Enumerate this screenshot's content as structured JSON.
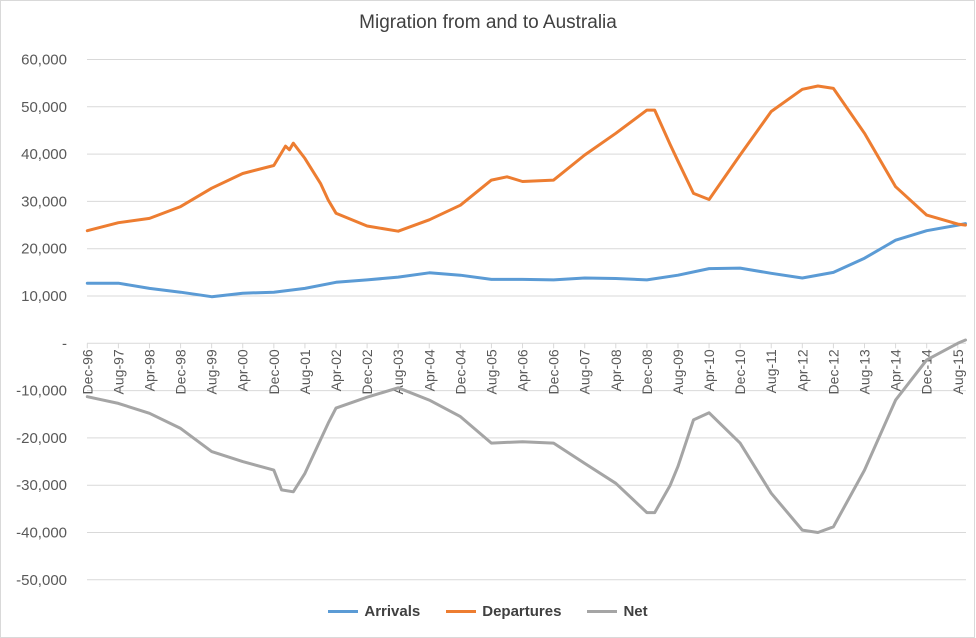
{
  "chart_data": {
    "type": "line",
    "title": "Migration from and to Australia",
    "xlabel": "",
    "ylabel": "",
    "ylim": [
      -50000,
      60000
    ],
    "y_ticks": [
      {
        "value": 60000,
        "label": "60,000"
      },
      {
        "value": 50000,
        "label": "50,000"
      },
      {
        "value": 40000,
        "label": "40,000"
      },
      {
        "value": 30000,
        "label": "30,000"
      },
      {
        "value": 20000,
        "label": "20,000"
      },
      {
        "value": 10000,
        "label": "10,000"
      },
      {
        "value": 0,
        "label": "-"
      },
      {
        "value": -10000,
        "label": "-10,000"
      },
      {
        "value": -20000,
        "label": "-20,000"
      },
      {
        "value": -30000,
        "label": "-30,000"
      },
      {
        "value": -40000,
        "label": "-40,000"
      },
      {
        "value": -50000,
        "label": "-50,000"
      }
    ],
    "x_range": [
      "Dec-96",
      "Oct-15"
    ],
    "x_tick_labels": [
      "Dec-96",
      "Aug-97",
      "Apr-98",
      "Dec-98",
      "Aug-99",
      "Apr-00",
      "Dec-00",
      "Aug-01",
      "Apr-02",
      "Dec-02",
      "Aug-03",
      "Apr-04",
      "Dec-04",
      "Aug-05",
      "Apr-06",
      "Dec-06",
      "Aug-07",
      "Apr-08",
      "Dec-08",
      "Aug-09",
      "Apr-10",
      "Dec-10",
      "Aug-11",
      "Apr-12",
      "Dec-12",
      "Aug-13",
      "Apr-14",
      "Dec-14",
      "Aug-15"
    ],
    "grid": true,
    "legend": "bottom",
    "series": [
      {
        "name": "Arrivals",
        "color": "#5B9BD5",
        "points": [
          [
            "Dec-96",
            12700
          ],
          [
            "Aug-97",
            12700
          ],
          [
            "Apr-98",
            11600
          ],
          [
            "Dec-98",
            10800
          ],
          [
            "Aug-99",
            9850
          ],
          [
            "Apr-00",
            10600
          ],
          [
            "Dec-00",
            10800
          ],
          [
            "Aug-01",
            11600
          ],
          [
            "Apr-02",
            12900
          ],
          [
            "Dec-02",
            13400
          ],
          [
            "Aug-03",
            14000
          ],
          [
            "Apr-04",
            14900
          ],
          [
            "Dec-04",
            14400
          ],
          [
            "Aug-05",
            13500
          ],
          [
            "Apr-06",
            13500
          ],
          [
            "Dec-06",
            13400
          ],
          [
            "Aug-07",
            13800
          ],
          [
            "Apr-08",
            13700
          ],
          [
            "Dec-08",
            13400
          ],
          [
            "Aug-09",
            14400
          ],
          [
            "Apr-10",
            15800
          ],
          [
            "Dec-10",
            15900
          ],
          [
            "Aug-11",
            14800
          ],
          [
            "Apr-12",
            13800
          ],
          [
            "Dec-12",
            15000
          ],
          [
            "Aug-13",
            18000
          ],
          [
            "Apr-14",
            21800
          ],
          [
            "Dec-14",
            23800
          ],
          [
            "Aug-15",
            25000
          ],
          [
            "Oct-15",
            25300
          ]
        ]
      },
      {
        "name": "Departures",
        "color": "#ED7D31",
        "points": [
          [
            "Dec-96",
            23800
          ],
          [
            "Aug-97",
            25500
          ],
          [
            "Apr-98",
            26400
          ],
          [
            "Dec-98",
            28900
          ],
          [
            "Aug-99",
            32800
          ],
          [
            "Apr-00",
            35900
          ],
          [
            "Dec-00",
            37600
          ],
          [
            "Mar-01",
            41700
          ],
          [
            "Apr-01",
            40900
          ],
          [
            "May-01",
            42300
          ],
          [
            "Aug-01",
            39100
          ],
          [
            "Dec-01",
            33800
          ],
          [
            "Feb-02",
            30300
          ],
          [
            "Apr-02",
            27500
          ],
          [
            "Dec-02",
            24800
          ],
          [
            "Aug-03",
            23700
          ],
          [
            "Apr-04",
            26100
          ],
          [
            "Dec-04",
            29200
          ],
          [
            "Aug-05",
            34500
          ],
          [
            "Dec-05",
            35200
          ],
          [
            "Apr-06",
            34200
          ],
          [
            "Dec-06",
            34500
          ],
          [
            "Aug-07",
            39800
          ],
          [
            "Apr-08",
            44400
          ],
          [
            "Dec-08",
            49300
          ],
          [
            "Feb-09",
            49300
          ],
          [
            "Jun-09",
            42000
          ],
          [
            "Aug-09",
            38500
          ],
          [
            "Dec-09",
            31700
          ],
          [
            "Apr-10",
            30400
          ],
          [
            "Dec-10",
            39800
          ],
          [
            "Aug-11",
            49000
          ],
          [
            "Apr-12",
            53700
          ],
          [
            "Aug-12",
            54400
          ],
          [
            "Dec-12",
            53900
          ],
          [
            "Aug-13",
            44400
          ],
          [
            "Apr-14",
            33100
          ],
          [
            "Dec-14",
            27100
          ],
          [
            "Aug-15",
            25200
          ],
          [
            "Oct-15",
            25000
          ]
        ]
      },
      {
        "name": "Net",
        "color": "#A5A5A5",
        "points": [
          [
            "Dec-96",
            -11300
          ],
          [
            "Aug-97",
            -12700
          ],
          [
            "Apr-98",
            -14800
          ],
          [
            "Dec-98",
            -18000
          ],
          [
            "Aug-99",
            -22900
          ],
          [
            "Apr-00",
            -25000
          ],
          [
            "Dec-00",
            -26800
          ],
          [
            "Feb-01",
            -31000
          ],
          [
            "May-01",
            -31400
          ],
          [
            "Aug-01",
            -27500
          ],
          [
            "Dec-01",
            -20400
          ],
          [
            "Feb-02",
            -16900
          ],
          [
            "Apr-02",
            -13700
          ],
          [
            "Dec-02",
            -11400
          ],
          [
            "Aug-03",
            -9400
          ],
          [
            "Apr-04",
            -12000
          ],
          [
            "Dec-04",
            -15500
          ],
          [
            "Aug-05",
            -21100
          ],
          [
            "Apr-06",
            -20800
          ],
          [
            "Dec-06",
            -21100
          ],
          [
            "Aug-07",
            -25400
          ],
          [
            "Apr-08",
            -29600
          ],
          [
            "Dec-08",
            -35800
          ],
          [
            "Feb-09",
            -35800
          ],
          [
            "Jun-09",
            -30000
          ],
          [
            "Aug-09",
            -26000
          ],
          [
            "Dec-09",
            -16200
          ],
          [
            "Apr-10",
            -14700
          ],
          [
            "Dec-10",
            -21100
          ],
          [
            "Aug-11",
            -31700
          ],
          [
            "Apr-12",
            -39500
          ],
          [
            "Aug-12",
            -40000
          ],
          [
            "Dec-12",
            -38800
          ],
          [
            "Aug-13",
            -26800
          ],
          [
            "Apr-14",
            -12000
          ],
          [
            "Dec-14",
            -3500
          ],
          [
            "Aug-15",
            0
          ],
          [
            "Oct-15",
            700
          ]
        ]
      }
    ]
  }
}
